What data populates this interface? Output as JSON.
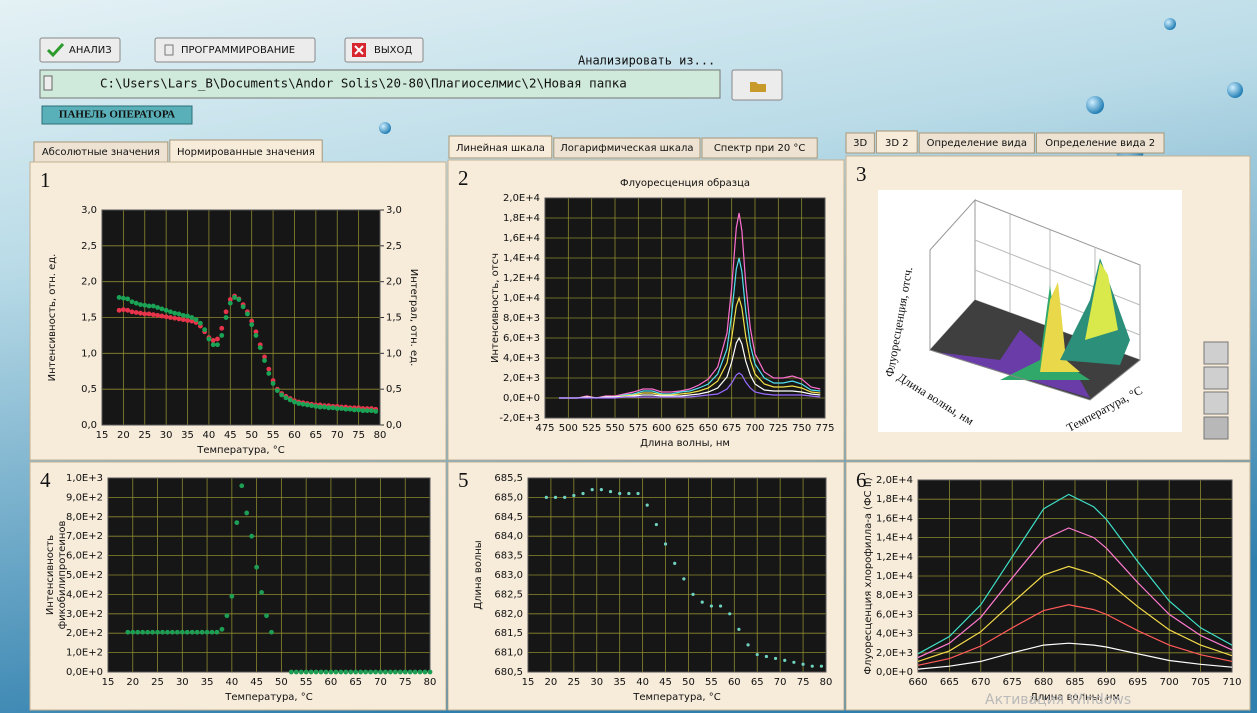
{
  "toolbar": {
    "buttons": [
      "АНАЛИЗ",
      "ПРОГРАММИРОВАНИЕ",
      "ВЫХОД"
    ],
    "source_label": "Анализировать из...",
    "path": "C:\\Users\\Lars_B\\Documents\\Andor Solis\\20-80\\Плагиоселмис\\2\\Новая папка",
    "operator_panel": "ПАНЕЛЬ ОПЕРАТОРА"
  },
  "tabs": [
    [
      "Абсолютные значения",
      "Нормированные значения"
    ],
    [
      "Линейная шкала",
      "Логарифмическая шкала",
      "Спектр при 20 °C"
    ],
    [
      "3D",
      "3D 2",
      "Определение вида",
      "Определение вида 2"
    ]
  ],
  "panel_numbers": [
    "1",
    "2",
    "3",
    "4",
    "5",
    "6"
  ],
  "image_3d": {
    "zlabel": "Флуоресценция, отсч.",
    "xlabel": "Длина волны, нм",
    "ylabel": "Температура, °C"
  },
  "watermark": "Активация Windows",
  "chart_data": [
    {
      "type": "scatter",
      "xlabel": "Температура, °C",
      "ylabel": "Интенсивность, отн. ед.",
      "y2label": "Интеграл, отн. ед.",
      "x": [
        19,
        20,
        21,
        22,
        23,
        24,
        25,
        26,
        27,
        28,
        29,
        30,
        31,
        32,
        33,
        34,
        35,
        36,
        37,
        38,
        39,
        40,
        41,
        42,
        43,
        44,
        45,
        46,
        47,
        48,
        49,
        50,
        51,
        52,
        53,
        54,
        55,
        56,
        57,
        58,
        59,
        60,
        61,
        62,
        63,
        64,
        65,
        66,
        67,
        68,
        69,
        70,
        71,
        72,
        73,
        74,
        75,
        76,
        77,
        78,
        79
      ],
      "series": [
        {
          "color": "#e8344a",
          "values": [
            1.6,
            1.61,
            1.6,
            1.58,
            1.57,
            1.56,
            1.55,
            1.55,
            1.54,
            1.53,
            1.52,
            1.51,
            1.5,
            1.49,
            1.48,
            1.47,
            1.46,
            1.45,
            1.43,
            1.38,
            1.3,
            1.22,
            1.18,
            1.2,
            1.35,
            1.58,
            1.75,
            1.8,
            1.76,
            1.68,
            1.58,
            1.45,
            1.3,
            1.12,
            0.95,
            0.78,
            0.62,
            0.5,
            0.44,
            0.4,
            0.37,
            0.34,
            0.32,
            0.31,
            0.3,
            0.29,
            0.28,
            0.28,
            0.27,
            0.27,
            0.26,
            0.26,
            0.25,
            0.25,
            0.24,
            0.24,
            0.24,
            0.23,
            0.23,
            0.23,
            0.22
          ]
        },
        {
          "color": "#1aa355",
          "values": [
            1.78,
            1.77,
            1.76,
            1.72,
            1.7,
            1.68,
            1.67,
            1.66,
            1.66,
            1.64,
            1.62,
            1.6,
            1.58,
            1.56,
            1.55,
            1.53,
            1.52,
            1.5,
            1.47,
            1.42,
            1.33,
            1.2,
            1.12,
            1.12,
            1.25,
            1.5,
            1.7,
            1.78,
            1.75,
            1.65,
            1.55,
            1.4,
            1.25,
            1.08,
            0.9,
            0.72,
            0.58,
            0.48,
            0.42,
            0.38,
            0.35,
            0.32,
            0.3,
            0.29,
            0.28,
            0.27,
            0.26,
            0.25,
            0.25,
            0.24,
            0.24,
            0.23,
            0.23,
            0.22,
            0.22,
            0.21,
            0.21,
            0.2,
            0.2,
            0.2,
            0.19
          ]
        }
      ],
      "xlim": [
        15,
        80
      ],
      "xticks": [
        15,
        20,
        25,
        30,
        35,
        40,
        45,
        50,
        55,
        60,
        65,
        70,
        75,
        80
      ],
      "ylim": [
        0,
        3
      ],
      "yticks": [
        {
          "value": 0,
          "label": "0,0"
        },
        {
          "value": 0.5,
          "label": "0,5"
        },
        {
          "value": 1,
          "label": "1,0"
        },
        {
          "value": 1.5,
          "label": "1,5"
        },
        {
          "value": 2,
          "label": "2,0"
        },
        {
          "value": 2.5,
          "label": "2,5"
        },
        {
          "value": 3,
          "label": "3,0"
        }
      ],
      "y2lim": [
        0,
        3
      ],
      "y2ticks": [
        {
          "value": 0,
          "label": "0,0"
        },
        {
          "value": 0.5,
          "label": "0,5"
        },
        {
          "value": 1,
          "label": "1,0"
        },
        {
          "value": 1.5,
          "label": "1,5"
        },
        {
          "value": 2,
          "label": "2,0"
        },
        {
          "value": 2.5,
          "label": "2,5"
        },
        {
          "value": 3,
          "label": "3,0"
        }
      ],
      "grid": true
    },
    {
      "type": "line",
      "title": "Флуоресценция образца",
      "xlabel": "Длина волны, нм",
      "ylabel": "Интенсивность, отсч",
      "x": [
        490,
        500,
        510,
        520,
        530,
        540,
        550,
        560,
        570,
        580,
        590,
        600,
        610,
        620,
        630,
        640,
        650,
        660,
        670,
        675,
        680,
        683,
        686,
        690,
        695,
        700,
        710,
        720,
        730,
        740,
        750,
        760,
        770
      ],
      "series": [
        {
          "color": "#ff6fd0",
          "values": [
            0,
            0,
            0,
            200,
            0,
            200,
            200,
            400,
            600,
            900,
            900,
            600,
            600,
            700,
            900,
            1300,
            1900,
            3100,
            6500,
            11100,
            17000,
            18500,
            16700,
            11500,
            7000,
            4400,
            2600,
            2000,
            2000,
            2200,
            1900,
            1100,
            900
          ]
        },
        {
          "color": "#52e0f0",
          "values": [
            0,
            0,
            0,
            100,
            0,
            100,
            100,
            300,
            400,
            700,
            700,
            400,
            400,
            600,
            700,
            1000,
            1400,
            2400,
            4900,
            8400,
            12900,
            14000,
            12600,
            8700,
            5300,
            3400,
            2000,
            1500,
            1500,
            1700,
            1400,
            800,
            700
          ]
        },
        {
          "color": "#f2e04a",
          "values": [
            0,
            0,
            0,
            100,
            0,
            100,
            100,
            200,
            300,
            500,
            500,
            300,
            300,
            400,
            500,
            700,
            1000,
            1700,
            3500,
            6000,
            9200,
            10000,
            9000,
            6200,
            3800,
            2400,
            1400,
            1100,
            1100,
            1200,
            1000,
            600,
            500
          ]
        },
        {
          "color": "#ffffff",
          "values": [
            0,
            0,
            0,
            100,
            0,
            100,
            100,
            100,
            200,
            300,
            300,
            200,
            200,
            200,
            300,
            400,
            600,
            1000,
            2100,
            3600,
            5500,
            6000,
            5400,
            3700,
            2300,
            1400,
            800,
            700,
            700,
            700,
            600,
            400,
            300
          ]
        },
        {
          "color": "#9a6cff",
          "values": [
            0,
            0,
            0,
            0,
            0,
            0,
            0,
            100,
            100,
            100,
            100,
            100,
            100,
            100,
            100,
            200,
            300,
            400,
            900,
            1500,
            2300,
            2500,
            2300,
            1600,
            1000,
            600,
            400,
            300,
            300,
            300,
            300,
            200,
            100
          ]
        }
      ],
      "xlim": [
        475,
        775
      ],
      "xticks": [
        475,
        500,
        525,
        550,
        575,
        600,
        625,
        650,
        675,
        700,
        725,
        750,
        775
      ],
      "ylim": [
        -2000,
        20000
      ],
      "yticks": [
        {
          "value": -2000,
          "label": "-2,0E+3"
        },
        {
          "value": 0,
          "label": "0,0E+0"
        },
        {
          "value": 2000,
          "label": "2,0E+3"
        },
        {
          "value": 4000,
          "label": "4,0E+3"
        },
        {
          "value": 6000,
          "label": "6,0E+3"
        },
        {
          "value": 8000,
          "label": "8,0E+3"
        },
        {
          "value": 10000,
          "label": "1,0E+4"
        },
        {
          "value": 12000,
          "label": "1,2E+4"
        },
        {
          "value": 14000,
          "label": "1,4E+4"
        },
        {
          "value": 16000,
          "label": "1,6E+4"
        },
        {
          "value": 18000,
          "label": "1,8E+4"
        },
        {
          "value": 20000,
          "label": "2,0E+4"
        }
      ],
      "grid": true
    },
    {
      "type": "scatter",
      "xlabel": "Температура, °C",
      "ylabel": [
        "Интенсивность",
        "фикобилипротеинов"
      ],
      "x": [
        19,
        20,
        21,
        22,
        23,
        24,
        25,
        26,
        27,
        28,
        29,
        30,
        31,
        32,
        33,
        34,
        35,
        36,
        37,
        38,
        39,
        40,
        41,
        42,
        43,
        44,
        45,
        46,
        47,
        48,
        52,
        53,
        54,
        55,
        56,
        57,
        58,
        59,
        60,
        61,
        62,
        63,
        64,
        65,
        66,
        67,
        68,
        69,
        70,
        71,
        72,
        73,
        74,
        75,
        76,
        77,
        78,
        79,
        80
      ],
      "series": [
        {
          "color": "#1e9e55",
          "values": [
            205,
            205,
            205,
            205,
            205,
            205,
            205,
            205,
            205,
            205,
            205,
            205,
            205,
            205,
            205,
            205,
            205,
            205,
            205,
            220,
            290,
            390,
            770,
            960,
            820,
            700,
            540,
            410,
            290,
            205,
            0,
            0,
            0,
            0,
            0,
            0,
            0,
            0,
            0,
            0,
            0,
            0,
            0,
            0,
            0,
            0,
            0,
            0,
            0,
            0,
            0,
            0,
            0,
            0,
            0,
            0,
            0,
            0,
            0
          ]
        }
      ],
      "xlim": [
        15,
        80
      ],
      "xticks": [
        15,
        20,
        25,
        30,
        35,
        40,
        45,
        50,
        55,
        60,
        65,
        70,
        75,
        80
      ],
      "ylim": [
        0,
        1000
      ],
      "yticks": [
        {
          "value": 0,
          "label": "0,0E+0"
        },
        {
          "value": 100,
          "label": "1,0E+2"
        },
        {
          "value": 200,
          "label": "2,0E+2"
        },
        {
          "value": 300,
          "label": "3,0E+2"
        },
        {
          "value": 400,
          "label": "4,0E+2"
        },
        {
          "value": 500,
          "label": "5,0E+2"
        },
        {
          "value": 600,
          "label": "6,0E+2"
        },
        {
          "value": 700,
          "label": "7,0E+2"
        },
        {
          "value": 800,
          "label": "8,0E+2"
        },
        {
          "value": 900,
          "label": "9,0E+2"
        },
        {
          "value": 1000,
          "label": "1,0E+3"
        }
      ],
      "grid": true
    },
    {
      "type": "scatter",
      "xlabel": "Температура, °C",
      "ylabel": "Длина волны",
      "x": [
        19,
        21,
        23,
        25,
        27,
        29,
        31,
        33,
        35,
        37,
        39,
        41,
        43,
        45,
        47,
        49,
        51,
        53,
        55,
        57,
        59,
        61,
        63,
        65,
        67,
        69,
        71,
        73,
        75,
        77,
        79
      ],
      "series": [
        {
          "color": "#6fd3c0",
          "values": [
            685.0,
            685.0,
            685.0,
            685.05,
            685.1,
            685.2,
            685.2,
            685.15,
            685.1,
            685.1,
            685.1,
            684.8,
            684.3,
            683.8,
            683.3,
            682.9,
            682.5,
            682.3,
            682.2,
            682.2,
            682.0,
            681.6,
            681.2,
            680.95,
            680.9,
            680.85,
            680.8,
            680.75,
            680.7,
            680.65,
            680.65
          ]
        }
      ],
      "xlim": [
        15,
        80
      ],
      "xticks": [
        15,
        20,
        25,
        30,
        35,
        40,
        45,
        50,
        55,
        60,
        65,
        70,
        75,
        80
      ],
      "ylim": [
        680.5,
        685.5
      ],
      "yticks": [
        {
          "value": 680.5,
          "label": "680,5"
        },
        {
          "value": 681,
          "label": "681,0"
        },
        {
          "value": 681.5,
          "label": "681,5"
        },
        {
          "value": 682,
          "label": "682,0"
        },
        {
          "value": 682.5,
          "label": "682,5"
        },
        {
          "value": 683,
          "label": "683,0"
        },
        {
          "value": 683.5,
          "label": "683,5"
        },
        {
          "value": 684,
          "label": "684,0"
        },
        {
          "value": 684.5,
          "label": "684,5"
        },
        {
          "value": 685,
          "label": "685,0"
        },
        {
          "value": 685.5,
          "label": "685,5"
        }
      ],
      "grid": true
    },
    {
      "type": "line",
      "xlabel": "Длина волны, нм",
      "ylabel": "Флуоресценция хлорофилла-а (ФС II)",
      "x": [
        660,
        665,
        670,
        675,
        680,
        684,
        688,
        690,
        695,
        700,
        705,
        710
      ],
      "series": [
        {
          "color": "#3fe0c8",
          "values": [
            1900,
            3700,
            7000,
            12000,
            17000,
            18500,
            17200,
            15900,
            11500,
            7400,
            4600,
            2800
          ]
        },
        {
          "color": "#ff7ad0",
          "values": [
            1500,
            3000,
            5700,
            9800,
            13800,
            15000,
            14000,
            12900,
            9300,
            6000,
            3800,
            2300
          ]
        },
        {
          "color": "#f2d84a",
          "values": [
            1100,
            2200,
            4200,
            7200,
            10100,
            11000,
            10200,
            9500,
            6800,
            4400,
            2800,
            1700
          ]
        },
        {
          "color": "#ff5a5a",
          "values": [
            700,
            1400,
            2700,
            4600,
            6400,
            7000,
            6500,
            6000,
            4300,
            2800,
            1800,
            1100
          ]
        },
        {
          "color": "#ffffff",
          "values": [
            300,
            600,
            1100,
            2000,
            2800,
            3000,
            2800,
            2600,
            1900,
            1200,
            800,
            500
          ]
        }
      ],
      "xlim": [
        660,
        710
      ],
      "xticks": [
        660,
        665,
        670,
        675,
        680,
        685,
        690,
        695,
        700,
        705,
        710
      ],
      "ylim": [
        0,
        20000
      ],
      "yticks": [
        {
          "value": 0,
          "label": "0,0E+0"
        },
        {
          "value": 2000,
          "label": "2,0E+3"
        },
        {
          "value": 4000,
          "label": "4,0E+3"
        },
        {
          "value": 6000,
          "label": "6,0E+3"
        },
        {
          "value": 8000,
          "label": "8,0E+3"
        },
        {
          "value": 10000,
          "label": "1,0E+4"
        },
        {
          "value": 12000,
          "label": "1,2E+4"
        },
        {
          "value": 14000,
          "label": "1,4E+4"
        },
        {
          "value": 16000,
          "label": "1,6E+4"
        },
        {
          "value": 18000,
          "label": "1,8E+4"
        },
        {
          "value": 20000,
          "label": "2,0E+4"
        }
      ],
      "grid": true
    }
  ]
}
